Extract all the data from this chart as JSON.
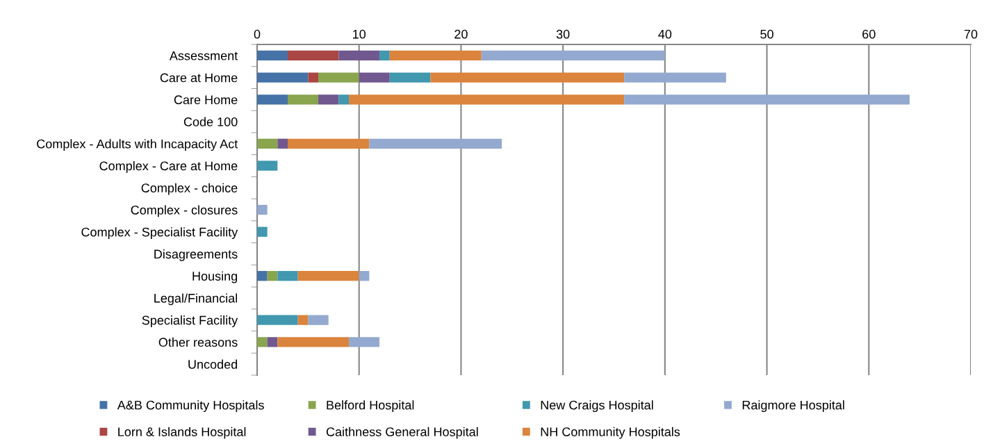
{
  "chart_data": {
    "type": "bar",
    "orientation": "horizontal",
    "stacked": true,
    "categories": [
      "Assessment",
      "Care at Home",
      "Care Home",
      "Code 100",
      "Complex - Adults with Incapacity Act",
      "Complex - Care at Home",
      "Complex - choice",
      "Complex - closures",
      "Complex - Specialist Facility",
      "Disagreements",
      "Housing",
      "Legal/Financial",
      "Specialist Facility",
      "Other reasons",
      "Uncoded"
    ],
    "series": [
      {
        "name": "A&B Community Hospitals",
        "color": "#4572a7",
        "values": [
          3,
          5,
          3,
          0,
          0,
          0,
          0,
          0,
          0,
          0,
          1,
          0,
          0,
          0,
          0
        ]
      },
      {
        "name": "Lorn & Islands Hospital",
        "color": "#aa4643",
        "values": [
          5,
          1,
          0,
          0,
          0,
          0,
          0,
          0,
          0,
          0,
          0,
          0,
          0,
          0,
          0
        ]
      },
      {
        "name": "Belford Hospital",
        "color": "#89a54e",
        "values": [
          0,
          4,
          3,
          0,
          2,
          0,
          0,
          0,
          0,
          0,
          1,
          0,
          0,
          1,
          0
        ]
      },
      {
        "name": "Caithness General Hospital",
        "color": "#71588f",
        "values": [
          4,
          3,
          2,
          0,
          1,
          0,
          0,
          0,
          0,
          0,
          0,
          0,
          0,
          1,
          0
        ]
      },
      {
        "name": "New Craigs Hospital",
        "color": "#4198af",
        "values": [
          1,
          4,
          1,
          0,
          0,
          2,
          0,
          0,
          1,
          0,
          2,
          0,
          4,
          0,
          0
        ]
      },
      {
        "name": "NH Community Hospitals",
        "color": "#db843d",
        "values": [
          9,
          19,
          27,
          0,
          8,
          0,
          0,
          0,
          0,
          0,
          6,
          0,
          1,
          7,
          0
        ]
      },
      {
        "name": "Raigmore Hospital",
        "color": "#93a9cf",
        "values": [
          18,
          10,
          28,
          0,
          13,
          0,
          0,
          1,
          0,
          0,
          1,
          0,
          2,
          3,
          0
        ]
      }
    ],
    "xlim": [
      0,
      70
    ],
    "xticks": [
      0,
      10,
      20,
      30,
      40,
      50,
      60,
      70
    ],
    "grid": "x",
    "legend": "bottom"
  }
}
